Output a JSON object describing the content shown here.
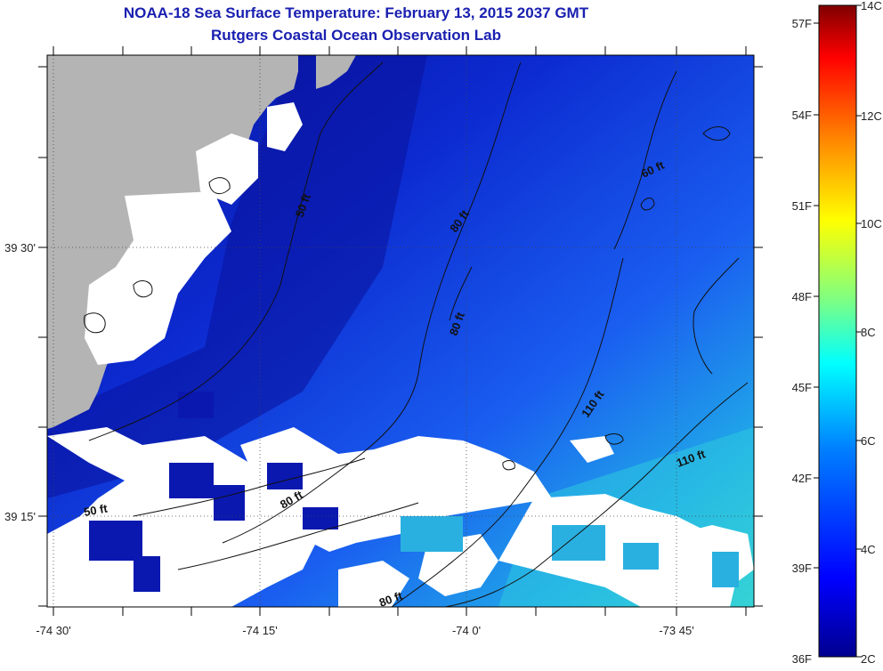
{
  "title": "NOAA-18 Sea Surface Temperature:  February 13, 2015 2037 GMT",
  "subtitle": "Rutgers Coastal Ocean Observation Lab",
  "x_ticks": [
    "-74 30'",
    "-74 15'",
    "-74 0'",
    "-73 45'"
  ],
  "y_ticks": [
    "39 30'",
    "39 15'"
  ],
  "contour_labels": [
    "50 ft",
    "80 ft",
    "80 ft",
    "60 ft",
    "110 ft",
    "110 ft",
    "80 ft",
    "50 ft",
    "80 ft"
  ],
  "colorbar": {
    "fahrenheit_labels": [
      "57F",
      "54F",
      "51F",
      "48F",
      "45F",
      "42F",
      "39F",
      "36F"
    ],
    "celsius_labels": [
      "14C",
      "12C",
      "10C",
      "8C",
      "6C",
      "4C",
      "2C"
    ],
    "colors": [
      "#7f0000",
      "#ff0000",
      "#ff8000",
      "#ffff00",
      "#80ff80",
      "#00ffff",
      "#0080ff",
      "#0000ff",
      "#00008f"
    ]
  },
  "colors": {
    "land": "#b4b4b4",
    "no_data": "#ffffff",
    "title": "#1a20b0",
    "cold_water": "#0a18b0",
    "warm_water": "#30d8d0"
  }
}
